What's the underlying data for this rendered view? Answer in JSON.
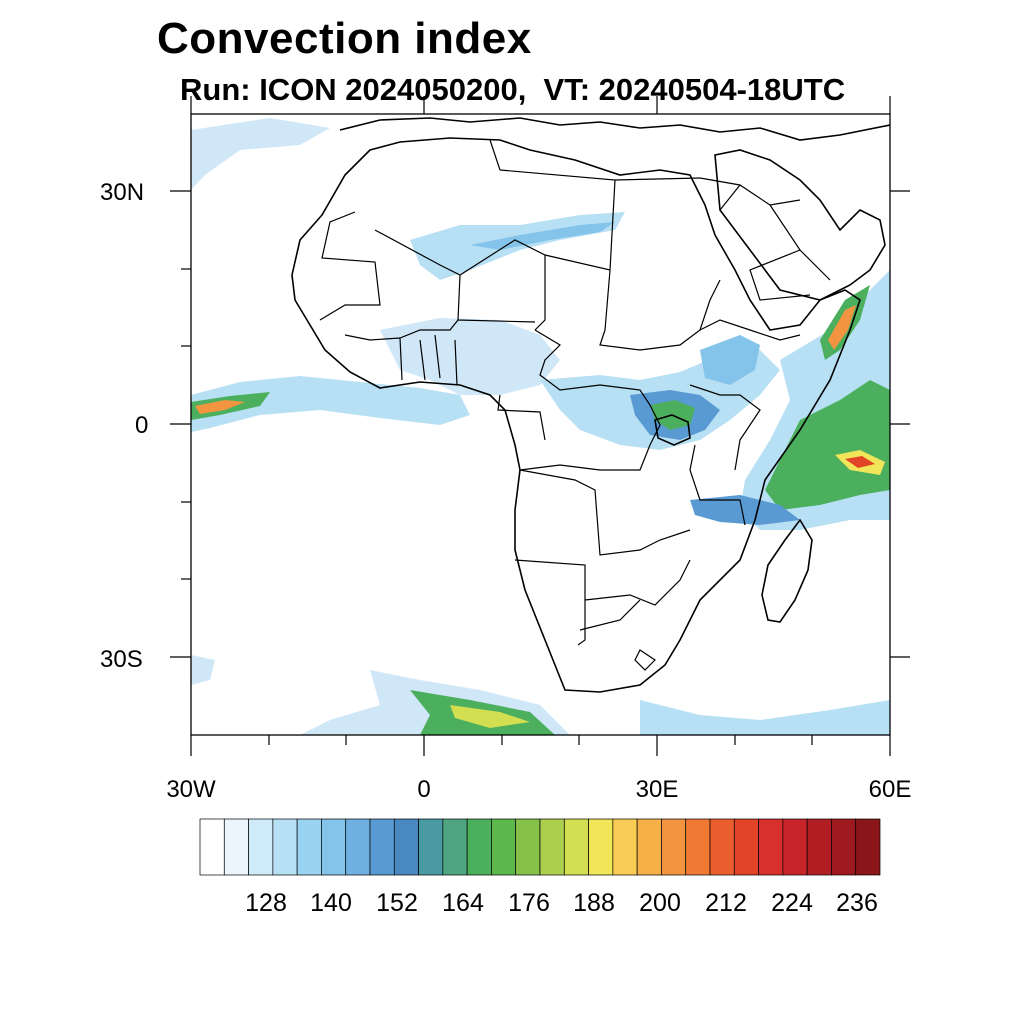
{
  "header": {
    "title": "Convection index",
    "subtitle": "Run: ICON 2024050200,  VT: 20240504-18UTC"
  },
  "axes": {
    "lat_labels": [
      "30N",
      "0",
      "30S"
    ],
    "lon_labels": [
      "30W",
      "0",
      "30E",
      "60E"
    ]
  },
  "colorbar": {
    "labels": [
      "128",
      "140",
      "152",
      "164",
      "176",
      "188",
      "200",
      "212",
      "224",
      "236"
    ],
    "colors": [
      "#ffffff",
      "#eaf5fc",
      "#cfeaf8",
      "#b7e0f5",
      "#9ad3f2",
      "#84c3ea",
      "#6fb0e0",
      "#5a9ad2",
      "#4a88c0",
      "#4a9aa3",
      "#4ea57f",
      "#4caf5e",
      "#5cb84a",
      "#86c24a",
      "#acd04c",
      "#d3de51",
      "#f1e55a",
      "#f8cc55",
      "#f5b048",
      "#f39440",
      "#f07a34",
      "#ea5d2c",
      "#e24428",
      "#d8302c",
      "#c7242a",
      "#b01e24",
      "#9e1a1e",
      "#8b161a"
    ]
  },
  "map": {
    "precip_colors": {
      "light": "#cfe7f6",
      "mid": "#84c3ea",
      "blue": "#5a9ad2",
      "green": "#4caf5e",
      "yellow": "#f1e55a",
      "orange": "#f39440",
      "red": "#e24428"
    }
  }
}
